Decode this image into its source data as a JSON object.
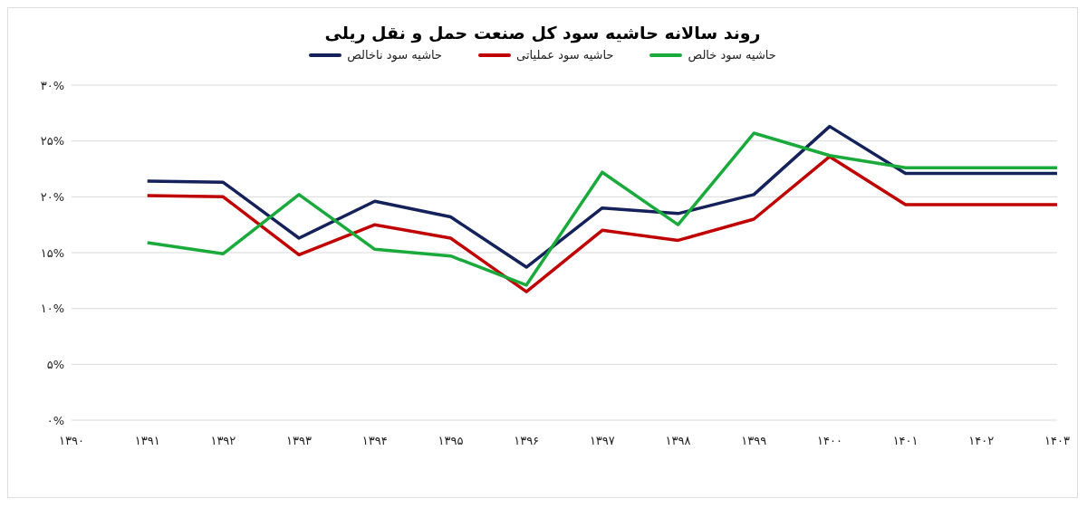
{
  "chart_data": {
    "type": "line",
    "title": "روند سالانه حاشیه سود کل صنعت حمل و نقل ریلی",
    "categories": [
      "۱۳۹۰",
      "۱۳۹۱",
      "۱۳۹۲",
      "۱۳۹۳",
      "۱۳۹۴",
      "۱۳۹۵",
      "۱۳۹۶",
      "۱۳۹۷",
      "۱۳۹۸",
      "۱۳۹۹",
      "۱۴۰۰",
      "۱۴۰۱",
      "۱۴۰۲",
      "۱۴۰۳"
    ],
    "series": [
      {
        "name": "حاشیه سود خالص",
        "color": "#1aaa3c",
        "values": [
          null,
          15.9,
          14.9,
          20.2,
          15.3,
          14.7,
          12.1,
          22.2,
          17.5,
          25.7,
          23.7,
          22.6,
          22.6,
          22.6
        ]
      },
      {
        "name": "حاشیه سود عملیاتی",
        "color": "#c00000",
        "values": [
          null,
          20.1,
          20.0,
          14.8,
          17.5,
          16.3,
          11.5,
          17.0,
          16.1,
          18.0,
          23.6,
          19.3,
          19.3,
          19.3
        ]
      },
      {
        "name": "حاشیه سود ناخالص",
        "color": "#14215a",
        "values": [
          null,
          21.4,
          21.3,
          16.3,
          19.6,
          18.2,
          13.7,
          19.0,
          18.5,
          20.2,
          26.3,
          22.1,
          22.1,
          22.1
        ]
      }
    ],
    "ylim": [
      0,
      30
    ],
    "yticks": [
      {
        "value": 0,
        "label": "۰%"
      },
      {
        "value": 5,
        "label": "۵%"
      },
      {
        "value": 10,
        "label": "۱۰%"
      },
      {
        "value": 15,
        "label": "۱۵%"
      },
      {
        "value": 20,
        "label": "۲۰%"
      },
      {
        "value": 25,
        "label": "۲۵%"
      },
      {
        "value": 30,
        "label": "۳۰%"
      }
    ],
    "grid": "y",
    "legend": "top",
    "marker": "none",
    "line_style": "solid"
  }
}
